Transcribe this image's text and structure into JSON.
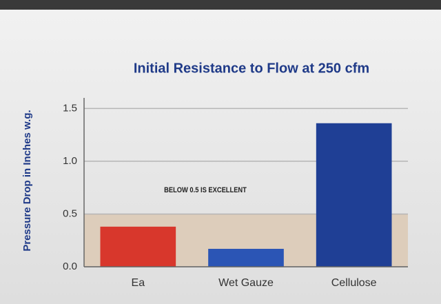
{
  "chart_data": {
    "type": "bar",
    "title": "Initial Resistance to Flow at 250 cfm",
    "y_label": "Pressure Drop in Inches w.g.",
    "categories": [
      "Ea",
      "Wet Gauze",
      "Cellulose"
    ],
    "values": [
      0.38,
      0.17,
      1.36
    ],
    "colors": [
      "#d8372c",
      "#2b55b5",
      "#1f3f95"
    ],
    "ylim": [
      0,
      1.6
    ],
    "yticks": [
      {
        "value": 0,
        "label": "0.0"
      },
      0.5,
      {
        "value": 1,
        "label": "1.0"
      },
      1.5
    ],
    "grid": true,
    "band": {
      "from": 0,
      "to": 0.5,
      "label": "BELOW 0.5 IS EXCELLENT",
      "color": "#dcc9b4"
    }
  }
}
